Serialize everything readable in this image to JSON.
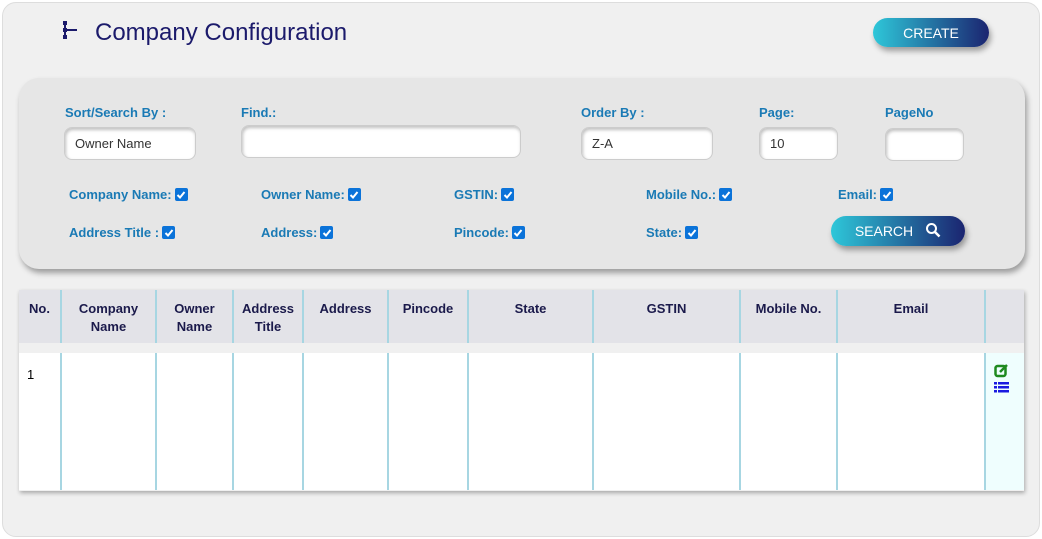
{
  "header": {
    "title": "Company Configuration",
    "create_label": "CREATE"
  },
  "filters": {
    "sort_label": "Sort/Search By :",
    "sort_value": "Owner Name",
    "find_label": "Find.:",
    "find_value": "",
    "order_label": "Order By :",
    "order_value": "Z-A",
    "page_label": "Page:",
    "page_value": "10",
    "pageno_label": "PageNo",
    "pageno_value": "",
    "checkboxes": [
      {
        "label": "Company Name:",
        "checked": true
      },
      {
        "label": "Owner Name:",
        "checked": true
      },
      {
        "label": "GSTIN:",
        "checked": true
      },
      {
        "label": "Mobile No.:",
        "checked": true
      },
      {
        "label": "Email:",
        "checked": true
      },
      {
        "label": "Address Title :",
        "checked": true
      },
      {
        "label": "Address:",
        "checked": true
      },
      {
        "label": "Pincode:",
        "checked": true
      },
      {
        "label": "State:",
        "checked": true
      }
    ],
    "search_label": "SEARCH"
  },
  "table": {
    "columns": [
      "No.",
      "Company\nName",
      "Owner\nName",
      "Address\nTitle",
      "Address",
      "Pincode",
      "State",
      "GSTIN",
      "Mobile No.",
      "Email",
      ""
    ],
    "rows": [
      [
        "1",
        "",
        "",
        "",
        "",
        "",
        "",
        "",
        "",
        "",
        ""
      ]
    ]
  },
  "colors": {
    "accent": "#1a7ab5",
    "title": "#1b1a6b",
    "edit_icon": "#1f8a1f",
    "list_icon": "#1a1ae0"
  }
}
